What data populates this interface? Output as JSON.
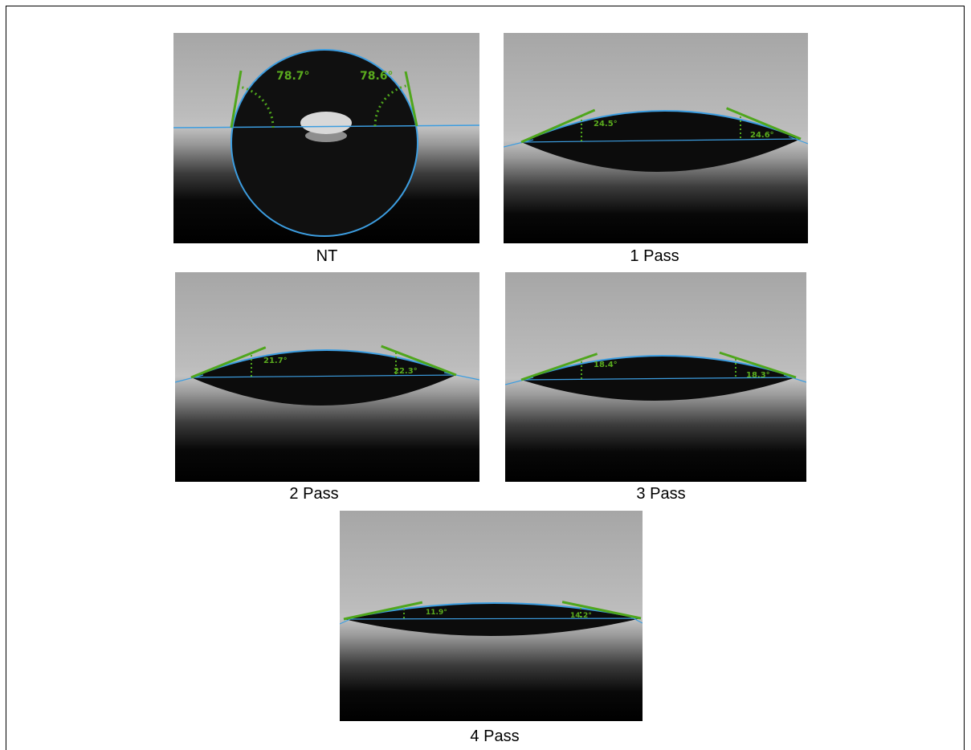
{
  "panels": [
    {
      "caption": "NT",
      "angle_left": "78.7°",
      "angle_right": "78.6°"
    },
    {
      "caption": "1 Pass",
      "angle_left": "24.5°",
      "angle_right": "24.6°"
    },
    {
      "caption": "2 Pass",
      "angle_left": "21.7°",
      "angle_right": "22.3°"
    },
    {
      "caption": "3 Pass",
      "angle_left": "18.4°",
      "angle_right": "18.3°"
    },
    {
      "caption": "4 Pass",
      "angle_left": "11.9°",
      "angle_right": "14.2°"
    }
  ]
}
